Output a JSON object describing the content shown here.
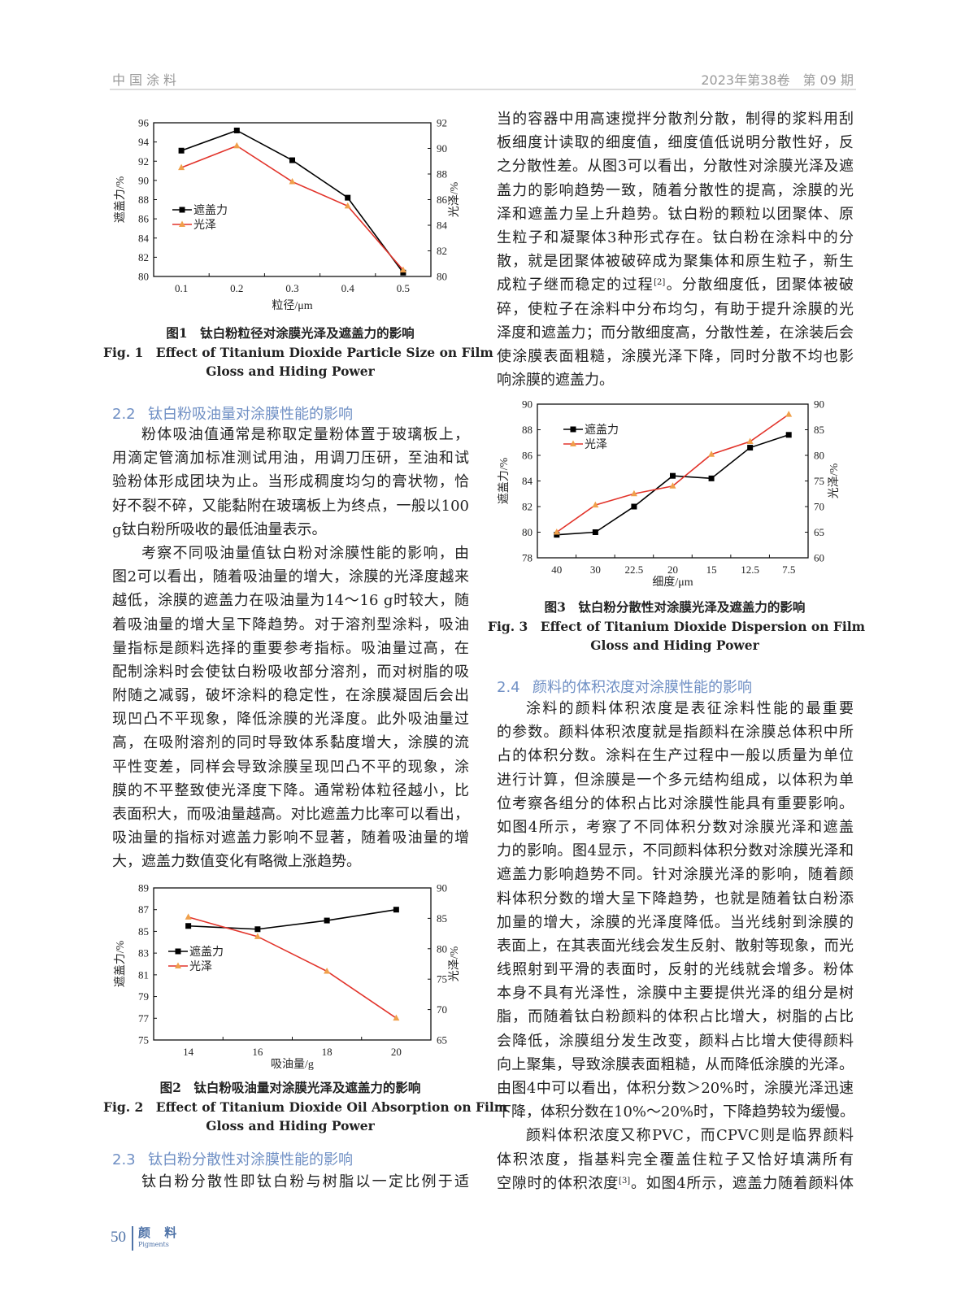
{
  "header": {
    "journal": "中国涂料",
    "issue": "2023年第38卷　第 09 期"
  },
  "footer": {
    "page_number": "50",
    "magazine": "颜 料",
    "magazine_en": "Pigments"
  },
  "figures": [
    {
      "cn": "图1　钛白粉粒径对涂膜光泽及遮盖力的影响",
      "en": [
        "Fig. 1　Effect of Titanium Dioxide Particle Size on Film",
        "Gloss and Hiding Power"
      ]
    },
    {
      "cn": "图2　钛白粉吸油量对涂膜光泽及遮盖力的影响",
      "en": [
        "Fig. 2　Effect of Titanium Dioxide Oil Absorption on Film",
        "Gloss and Hiding Power"
      ]
    },
    {
      "cn": "图3　钛白粉分散性对涂膜光泽及遮盖力的影响",
      "en": [
        "Fig. 3　Effect of Titanium Dioxide Dispersion on Film",
        "Gloss and Hiding Power"
      ]
    }
  ],
  "sections": {
    "s22": {
      "num": "2.2",
      "title": "钛白粉吸油量对涂膜性能的影响",
      "paragraphs": [
        [
          "粉体吸油值通常是称取定量粉体置于玻璃板上，",
          "用滴定管滴加标准测试用油，用调刀压研，至油和试",
          "验粉体形成团块为止。当形成稠度均匀的膏状物，恰",
          "好不裂不碎，又能黏附在玻璃板上为终点，一般以100",
          "g钛白粉所吸收的最低油量表示。"
        ],
        [
          "考察不同吸油量值钛白粉对涂膜性能的影响，由",
          "图2可以看出，随着吸油量的增大，涂膜的光泽度越来",
          "越低，涂膜的遮盖力在吸油量为14～16 g时较大，随",
          "着吸油量的增大呈下降趋势。对于溶剂型涂料，吸油",
          "量指标是颜料选择的重要参考指标。吸油量过高，在",
          "配制涂料时会使钛白粉吸收部分溶剂，而对树脂的吸",
          "附随之减弱，破坏涂料的稳定性，在涂膜凝固后会出",
          "现凹凸不平现象，降低涂膜的光泽度。此外吸油量过",
          "高，在吸附溶剂的同时导致体系黏度增大，涂膜的流",
          "平性变差，同样会导致涂膜呈现凹凸不平的现象，涂",
          "膜的不平整致使光泽度下降。通常粉体粒径越小，比",
          "表面积大，而吸油量越高。对比遮盖力比率可以看出，",
          "吸油量的指标对遮盖力影响不显著，随着吸油量的增",
          "大，遮盖力数值变化有略微上涨趋势。"
        ]
      ]
    },
    "s23": {
      "num": "2.3",
      "title": "钛白粉分散性对涂膜性能的影响",
      "paragraphs": [
        [
          "钛白粉分散性即钛白粉与树脂以一定比例于适"
        ]
      ],
      "continuation": [
        [
          "当的容器中用高速搅拌分散剂分散，制得的浆料用刮",
          "板细度计读取的细度值，细度值低说明分散性好，反",
          "之分散性差。从图3可以看出，分散性对涂膜光泽及遮",
          "盖力的影响趋势一致，随着分散性的提高，涂膜的光",
          "泽和遮盖力呈上升趋势。钛白粉的颗粒以团聚体、原",
          "生粒子和凝聚体3种形式存在。钛白粉在涂料中的分",
          "散，就是团聚体被破碎成为聚集体和原生粒子，新生",
          [
            "成粒子继而稳定的过程",
            "[2]",
            "。分散细度低，团聚体被破"
          ],
          "碎，使粒子在涂料中分布均匀，有助于提升涂膜的光",
          "泽度和遮盖力；而分散细度高，分散性差，在涂装后会",
          "使涂膜表面粗糙，涂膜光泽下降，同时分散不均也影",
          "响涂膜的遮盖力。"
        ]
      ]
    },
    "s24": {
      "num": "2.4",
      "title": "颜料的体积浓度对涂膜性能的影响",
      "paragraphs": [
        [
          "涂料的颜料体积浓度是表征涂料性能的最重要",
          "的参数。颜料体积浓度就是指颜料在涂膜总体积中所",
          "占的体积分数。涂料在生产过程中一般以质量为单位",
          "进行计算，但涂膜是一个多元结构组成，以体积为单",
          "位考察各组分的体积占比对涂膜性能具有重要影响。",
          "如图4所示，考察了不同体积分数对涂膜光泽和遮盖",
          "力的影响。图4显示，不同颜料体积分数对涂膜光泽和",
          "遮盖力影响趋势不同。针对涂膜光泽的影响，随着颜",
          "料体积分数的增大呈下降趋势，也就是随着钛白粉添",
          "加量的增大，涂膜的光泽度降低。当光线射到涂膜的",
          "表面上，在其表面光线会发生反射、散射等现象，而光",
          "线照射到平滑的表面时，反射的光线就会增多。粉体",
          "本身不具有光泽性，涂膜中主要提供光泽的组分是树",
          "脂，而随着钛白粉颜料的体积占比增大，树脂的占比",
          "会降低，涂膜组分发生改变，颜料占比增大使得颜料",
          "向上聚集，导致涂膜表面粗糙，从而降低涂膜的光泽。",
          "由图4中可以看出，体积分数＞20%时，涂膜光泽迅速",
          "下降，体积分数在10%～20%时，下降趋势较为缓慢。"
        ],
        [
          "颜料体积浓度又称PVC，而CPVC则是临界颜料",
          "体积浓度，指基料完全覆盖住粒子又恰好填满所有",
          [
            "空隙时的体积浓度",
            "[3]",
            "。如图4所示，遮盖力随着颜料体"
          ]
        ]
      ]
    }
  },
  "chart_data": [
    {
      "type": "line",
      "xscale": "linear",
      "x": [
        0.1,
        0.2,
        0.3,
        0.4,
        0.5
      ],
      "x_tick_labels": [
        "0.1",
        "0.2",
        "0.3",
        "0.4",
        "0.5"
      ],
      "xlim": [
        0.05,
        0.55
      ],
      "xlabel": "粒径/μm",
      "ylabel": "遮盖力/%",
      "y2label": "光泽/%",
      "ylim": [
        80,
        96
      ],
      "ytick_step": 2,
      "y2lim": [
        80,
        92
      ],
      "y2tick_step": 2,
      "legend": "left-middle",
      "grid": false,
      "series": [
        {
          "name": "遮盖力",
          "axis": "left",
          "values": [
            93.1,
            95.2,
            92.1,
            88.2,
            80.4
          ],
          "color": "#000000",
          "marker": "square"
        },
        {
          "name": "光泽",
          "axis": "right",
          "values": [
            88.5,
            90.2,
            87.4,
            85.5,
            80.5
          ],
          "color": "#e2342b",
          "marker_color": "#f0a04b",
          "marker": "triangle"
        }
      ]
    },
    {
      "type": "line",
      "xscale": "linear",
      "x": [
        14,
        16,
        18,
        20
      ],
      "x_tick_labels": [
        "14",
        "16",
        "18",
        "20"
      ],
      "xlim": [
        13,
        21
      ],
      "xlabel": "吸油量/g",
      "ylabel": "遮盖力/%",
      "y2label": "光泽/%",
      "ylim": [
        75,
        89
      ],
      "ytick_step": 2,
      "y2lim": [
        65,
        90
      ],
      "y2tick_step": 5,
      "legend": "left-middle",
      "grid": false,
      "series": [
        {
          "name": "遮盖力",
          "axis": "left",
          "values": [
            85.5,
            85.2,
            86.0,
            87.0
          ],
          "color": "#000000",
          "marker": "square"
        },
        {
          "name": "光泽",
          "axis": "right",
          "values": [
            85.2,
            82.0,
            76.3,
            68.6
          ],
          "color": "#e2342b",
          "marker_color": "#f0a04b",
          "marker": "triangle"
        }
      ]
    },
    {
      "type": "line",
      "xscale": "category",
      "categories": [
        "40",
        "30",
        "22.5",
        "20",
        "15",
        "12.5",
        "7.5"
      ],
      "x_tick_labels": [
        "40",
        "30",
        "22.5",
        "20",
        "15",
        "12.5",
        "7.5"
      ],
      "xlabel": "细度/μm",
      "ylabel": "遮盖力/%",
      "y2label": "光泽/%",
      "ylim": [
        78,
        90
      ],
      "ytick_step": 2,
      "y2lim": [
        60,
        90
      ],
      "y2tick_step": 5,
      "legend": "top-left",
      "grid": false,
      "series": [
        {
          "name": "遮盖力",
          "axis": "left",
          "values": [
            79.8,
            80.0,
            82.0,
            84.4,
            84.2,
            86.6,
            87.6
          ],
          "color": "#000000",
          "marker": "square"
        },
        {
          "name": "光泽",
          "axis": "right",
          "values": [
            65.0,
            70.3,
            72.5,
            74.0,
            80.2,
            82.7,
            88.0
          ],
          "color": "#e2342b",
          "marker_color": "#f0a04b",
          "marker": "triangle"
        }
      ]
    }
  ]
}
